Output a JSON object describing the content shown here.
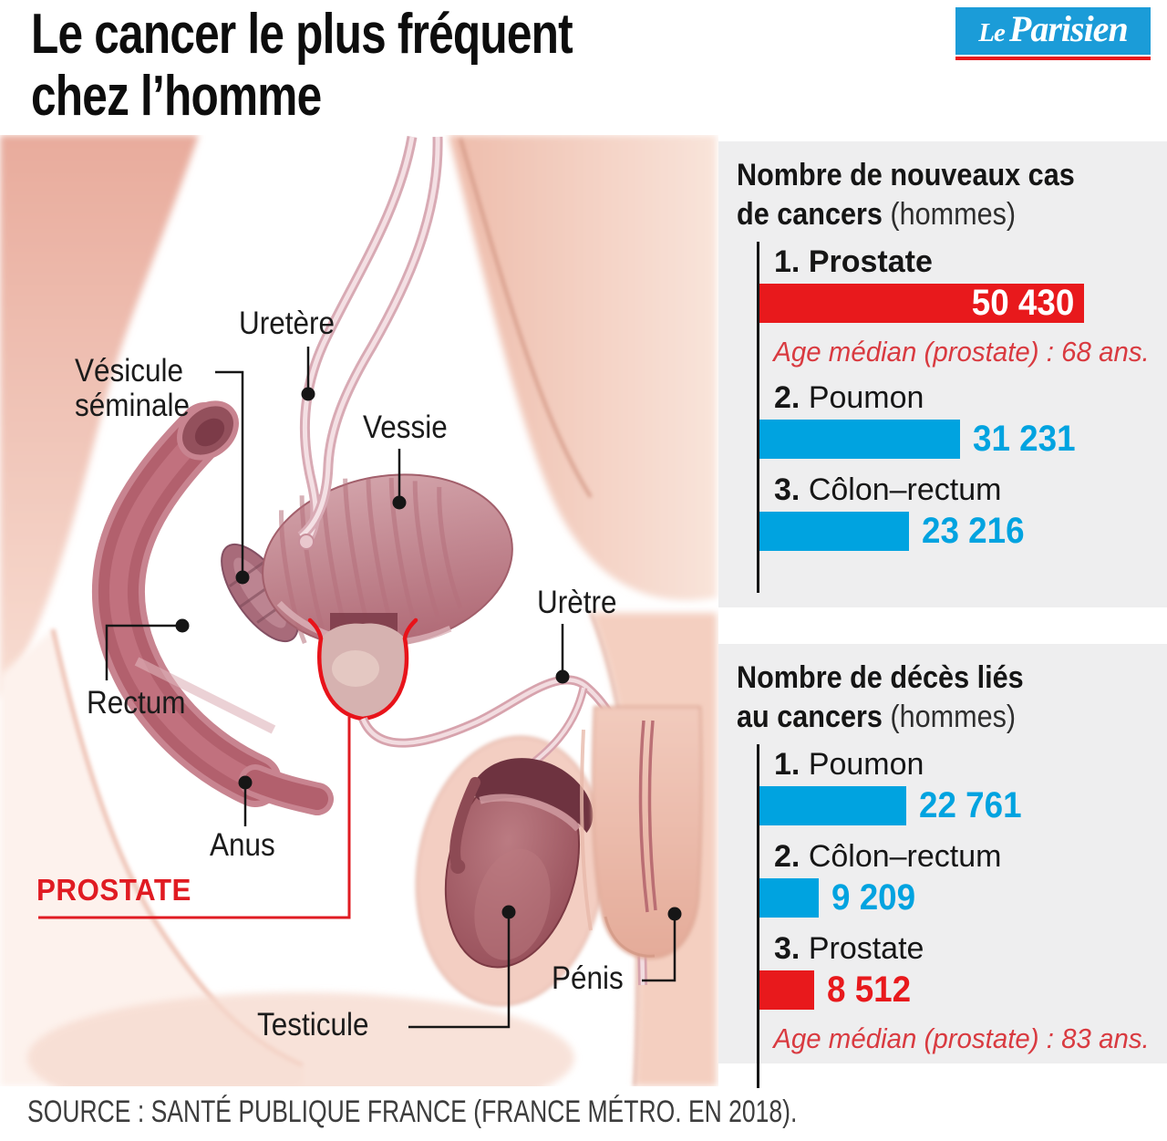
{
  "page": {
    "title": "Le cancer le plus fréquent\nchez l’homme",
    "source": "SOURCE : SANTÉ PUBLIQUE FRANCE (FRANCE MÉTRO. EN 2018)."
  },
  "logo": {
    "le": "Le",
    "parisien": "Parisien"
  },
  "colors": {
    "accent_red": "#e8191c",
    "accent_blue": "#00a3e0",
    "panel_bg": "#eeeeef",
    "logo_blue": "#1b9cd8",
    "note_red": "#d93a40",
    "text_dark": "#111111"
  },
  "scale_max": 50430,
  "panels": [
    {
      "title_line1": "Nombre de nouveaux cas",
      "title_line2_bold": "de cancers",
      "title_light": "(hommes)",
      "items": [
        {
          "rank": "1.",
          "label": "Prostate",
          "value": 50430,
          "value_display": "50 430",
          "color": "red"
        },
        {
          "rank": "2.",
          "label": "Poumon",
          "value": 31231,
          "value_display": "31 231",
          "color": "blue"
        },
        {
          "rank": "3.",
          "label": "Côlon–rectum",
          "value": 23216,
          "value_display": "23 216",
          "color": "blue"
        }
      ],
      "note": "Age médian (prostate) : 68 ans."
    },
    {
      "title_line1": "Nombre de décès liés",
      "title_line2_bold": "au cancers",
      "title_light": "(hommes)",
      "items": [
        {
          "rank": "1.",
          "label": "Poumon",
          "value": 22761,
          "value_display": "22 761",
          "color": "blue"
        },
        {
          "rank": "2.",
          "label": "Côlon–rectum",
          "value": 9209,
          "value_display": "9 209",
          "color": "blue"
        },
        {
          "rank": "3.",
          "label": "Prostate",
          "value": 8512,
          "value_display": "8 512",
          "color": "red"
        }
      ],
      "note": "Age médian (prostate) : 83 ans."
    }
  ],
  "anatomy": {
    "labels": {
      "uretere": "Uretère",
      "vesicule": "Vésicule\nséminale",
      "vessie": "Vessie",
      "uretre": "Urètre",
      "rectum": "Rectum",
      "anus": "Anus",
      "prostate": "PROSTATE",
      "penis": "Pénis",
      "testicule": "Testicule"
    }
  },
  "chart_data": [
    {
      "type": "bar",
      "orientation": "horizontal",
      "title": "Nombre de nouveaux cas de cancers (hommes)",
      "categories": [
        "Prostate",
        "Poumon",
        "Côlon–rectum"
      ],
      "values": [
        50430,
        31231,
        23216
      ],
      "bar_colors": [
        "#e8191c",
        "#00a3e0",
        "#00a3e0"
      ],
      "xlim": [
        0,
        50430
      ],
      "annotation": "Age médian (prostate) : 68 ans.",
      "legend": "none",
      "grid": false
    },
    {
      "type": "bar",
      "orientation": "horizontal",
      "title": "Nombre de décès liés au cancers (hommes)",
      "categories": [
        "Poumon",
        "Côlon–rectum",
        "Prostate"
      ],
      "values": [
        22761,
        9209,
        8512
      ],
      "bar_colors": [
        "#00a3e0",
        "#00a3e0",
        "#e8191c"
      ],
      "xlim": [
        0,
        50430
      ],
      "annotation": "Age médian (prostate) : 83 ans.",
      "legend": "none",
      "grid": false
    }
  ]
}
